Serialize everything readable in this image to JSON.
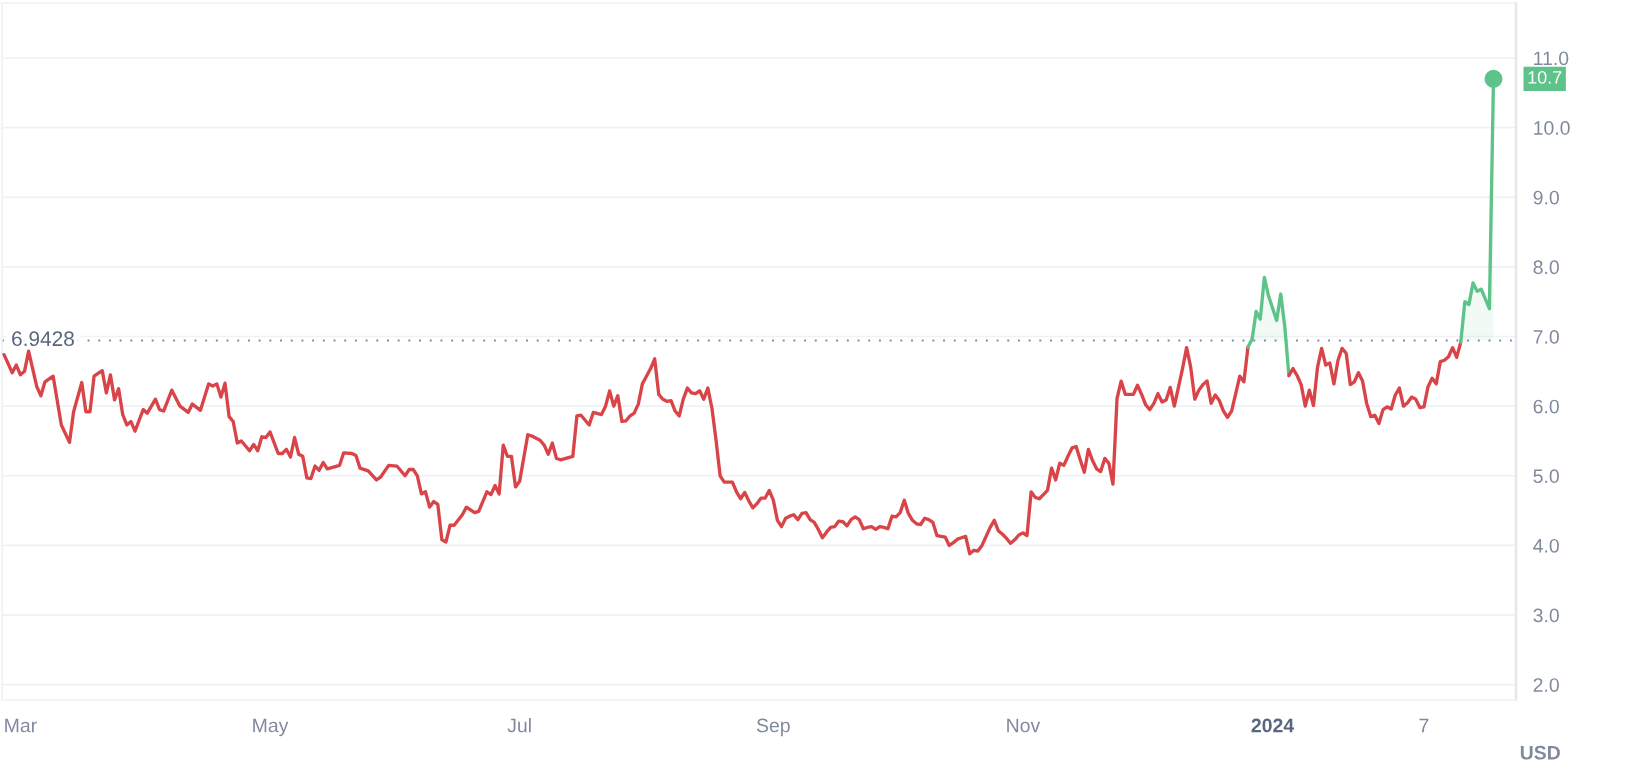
{
  "chart_data": {
    "type": "line",
    "ylabel": "USD",
    "xlim": [
      "2023-02-24T12:00",
      "2024-02-29T12:00"
    ],
    "ylim": [
      1.78,
      11.79
    ],
    "xticks": [
      {
        "value": "2023-03-01",
        "label": "Mar"
      },
      {
        "value": "2023-05-01",
        "label": "May"
      },
      {
        "value": "2023-07-01",
        "label": "Jul"
      },
      {
        "value": "2023-09-01",
        "label": "Sep"
      },
      {
        "value": "2023-11-01",
        "label": "Nov"
      },
      {
        "value": "2024-01-01",
        "label": "2024"
      },
      {
        "value": "2024-02-07",
        "label": "7"
      }
    ],
    "yticks": [
      {
        "value": 2,
        "label": "2.0"
      },
      {
        "value": 3,
        "label": "3.0"
      },
      {
        "value": 4,
        "label": "4.0"
      },
      {
        "value": 5,
        "label": "5.0"
      },
      {
        "value": 6,
        "label": "6.0"
      },
      {
        "value": 7,
        "label": "7.0"
      },
      {
        "value": 8,
        "label": "8.0"
      },
      {
        "value": 9,
        "label": "9.0"
      },
      {
        "value": 10,
        "label": "10.0"
      },
      {
        "value": 11,
        "label": "11.0"
      }
    ],
    "grid": "y",
    "ref_lines": [
      {
        "axis": "y",
        "value": 6.9428,
        "label": "6.9428",
        "line_style": "dotted",
        "color": "#808a9d"
      }
    ],
    "series": [
      {
        "color": "#d94449",
        "x": [
          "2023-02-25",
          "2023-02-27",
          "2023-02-28",
          "2023-03-01",
          "2023-03-02",
          "2023-03-03",
          "2023-03-05",
          "2023-03-06",
          "2023-03-07",
          "2023-03-09",
          "2023-03-11",
          "2023-03-13",
          "2023-03-14",
          "2023-03-16",
          "2023-03-17",
          "2023-03-18",
          "2023-03-19",
          "2023-03-21",
          "2023-03-22",
          "2023-03-23",
          "2023-03-24",
          "2023-03-25",
          "2023-03-26",
          "2023-03-27",
          "2023-03-28",
          "2023-03-29",
          "2023-03-31",
          "2023-04-01",
          "2023-04-03",
          "2023-04-04",
          "2023-04-05",
          "2023-04-07",
          "2023-04-09",
          "2023-04-11",
          "2023-04-12",
          "2023-04-14",
          "2023-04-16",
          "2023-04-17",
          "2023-04-18",
          "2023-04-19",
          "2023-04-20",
          "2023-04-21",
          "2023-04-22",
          "2023-04-23",
          "2023-04-24",
          "2023-04-26",
          "2023-04-27",
          "2023-04-28",
          "2023-04-29",
          "2023-04-30",
          "2023-05-01",
          "2023-05-03",
          "2023-05-04",
          "2023-05-05",
          "2023-05-06",
          "2023-05-07",
          "2023-05-08",
          "2023-05-09",
          "2023-05-10",
          "2023-05-11",
          "2023-05-12",
          "2023-05-13",
          "2023-05-14",
          "2023-05-15",
          "2023-05-18",
          "2023-05-19",
          "2023-05-21",
          "2023-05-22",
          "2023-05-23",
          "2023-05-25",
          "2023-05-27",
          "2023-05-28",
          "2023-05-30",
          "2023-06-01",
          "2023-06-03",
          "2023-06-04",
          "2023-06-05",
          "2023-06-06",
          "2023-06-07",
          "2023-06-08",
          "2023-06-09",
          "2023-06-10",
          "2023-06-11",
          "2023-06-12",
          "2023-06-13",
          "2023-06-14",
          "2023-06-15",
          "2023-06-17",
          "2023-06-18",
          "2023-06-20",
          "2023-06-21",
          "2023-06-23",
          "2023-06-24",
          "2023-06-25",
          "2023-06-26",
          "2023-06-27",
          "2023-06-28",
          "2023-06-29",
          "2023-06-30",
          "2023-07-01",
          "2023-07-03",
          "2023-07-04",
          "2023-07-06",
          "2023-07-07",
          "2023-07-08",
          "2023-07-09",
          "2023-07-10",
          "2023-07-11",
          "2023-07-14",
          "2023-07-15",
          "2023-07-16",
          "2023-07-18",
          "2023-07-19",
          "2023-07-21",
          "2023-07-22",
          "2023-07-23",
          "2023-07-24",
          "2023-07-25",
          "2023-07-26",
          "2023-07-27",
          "2023-07-28",
          "2023-07-29",
          "2023-07-30",
          "2023-07-31",
          "2023-08-01",
          "2023-08-02",
          "2023-08-03",
          "2023-08-04",
          "2023-08-05",
          "2023-08-06",
          "2023-08-07",
          "2023-08-08",
          "2023-08-09",
          "2023-08-10",
          "2023-08-11",
          "2023-08-12",
          "2023-08-13",
          "2023-08-14",
          "2023-08-15",
          "2023-08-16",
          "2023-08-17",
          "2023-08-18",
          "2023-08-19",
          "2023-08-20",
          "2023-08-22",
          "2023-08-23",
          "2023-08-24",
          "2023-08-25",
          "2023-08-26",
          "2023-08-27",
          "2023-08-28",
          "2023-08-29",
          "2023-08-30",
          "2023-08-31",
          "2023-09-01",
          "2023-09-02",
          "2023-09-03",
          "2023-09-04",
          "2023-09-05",
          "2023-09-06",
          "2023-09-07",
          "2023-09-08",
          "2023-09-09",
          "2023-09-10",
          "2023-09-11",
          "2023-09-12",
          "2023-09-13",
          "2023-09-14",
          "2023-09-15",
          "2023-09-16",
          "2023-09-17",
          "2023-09-18",
          "2023-09-19",
          "2023-09-20",
          "2023-09-21",
          "2023-09-22",
          "2023-09-23",
          "2023-09-24",
          "2023-09-25",
          "2023-09-26",
          "2023-09-27",
          "2023-09-28",
          "2023-09-29",
          "2023-09-30",
          "2023-10-01",
          "2023-10-02",
          "2023-10-03",
          "2023-10-04",
          "2023-10-05",
          "2023-10-06",
          "2023-10-07",
          "2023-10-08",
          "2023-10-09",
          "2023-10-10",
          "2023-10-11",
          "2023-10-12",
          "2023-10-13",
          "2023-10-14",
          "2023-10-15",
          "2023-10-16",
          "2023-10-17",
          "2023-10-18",
          "2023-10-19",
          "2023-10-20",
          "2023-10-21",
          "2023-10-22",
          "2023-10-23",
          "2023-10-24",
          "2023-10-25",
          "2023-10-26",
          "2023-10-27",
          "2023-10-28",
          "2023-10-29",
          "2023-10-30",
          "2023-10-31",
          "2023-11-01",
          "2023-11-02",
          "2023-11-03",
          "2023-11-04",
          "2023-11-05",
          "2023-11-06",
          "2023-11-07",
          "2023-11-08",
          "2023-11-09",
          "2023-11-10",
          "2023-11-11",
          "2023-11-12",
          "2023-11-13",
          "2023-11-14",
          "2023-11-15",
          "2023-11-16",
          "2023-11-17",
          "2023-11-18",
          "2023-11-19",
          "2023-11-20",
          "2023-11-21",
          "2023-11-22",
          "2023-11-23",
          "2023-11-24",
          "2023-11-25",
          "2023-11-26",
          "2023-11-28",
          "2023-11-29",
          "2023-11-30",
          "2023-12-01",
          "2023-12-02",
          "2023-12-03",
          "2023-12-04",
          "2023-12-05",
          "2023-12-06",
          "2023-12-07",
          "2023-12-08",
          "2023-12-09",
          "2023-12-10",
          "2023-12-11",
          "2023-12-12",
          "2023-12-13",
          "2023-12-14",
          "2023-12-15",
          "2023-12-16",
          "2023-12-17",
          "2023-12-18",
          "2023-12-19",
          "2023-12-20",
          "2023-12-21",
          "2023-12-22",
          "2023-12-23",
          "2023-12-24",
          "2023-12-25",
          "2023-12-26"
        ],
        "values": [
          6.74,
          6.48,
          6.59,
          6.45,
          6.5,
          6.79,
          6.28,
          6.15,
          6.35,
          6.43,
          5.73,
          5.48,
          5.92,
          6.34,
          5.92,
          5.92,
          6.43,
          6.51,
          6.19,
          6.45,
          6.09,
          6.25,
          5.88,
          5.73,
          5.78,
          5.64,
          5.95,
          5.9,
          6.1,
          5.95,
          5.93,
          6.23,
          6.0,
          5.91,
          6.03,
          5.94,
          6.32,
          6.29,
          6.32,
          6.13,
          6.33,
          5.85,
          5.78,
          5.47,
          5.5,
          5.36,
          5.45,
          5.36,
          5.56,
          5.55,
          5.63,
          5.32,
          5.32,
          5.38,
          5.27,
          5.55,
          5.31,
          5.28,
          4.97,
          4.96,
          5.14,
          5.08,
          5.19,
          5.1,
          5.15,
          5.33,
          5.32,
          5.29,
          5.11,
          5.07,
          4.94,
          4.98,
          5.15,
          5.14,
          5.0,
          5.09,
          5.09,
          5.0,
          4.74,
          4.77,
          4.55,
          4.63,
          4.59,
          4.08,
          4.05,
          4.29,
          4.29,
          4.44,
          4.55,
          4.47,
          4.49,
          4.77,
          4.73,
          4.86,
          4.74,
          5.44,
          5.28,
          5.28,
          4.84,
          4.92,
          5.59,
          5.57,
          5.51,
          5.44,
          5.31,
          5.47,
          5.25,
          5.23,
          5.28,
          5.86,
          5.87,
          5.73,
          5.91,
          5.88,
          6.0,
          6.22,
          6.0,
          6.15,
          5.78,
          5.79,
          5.86,
          5.9,
          6.03,
          6.32,
          6.43,
          6.54,
          6.68,
          6.17,
          6.1,
          6.07,
          6.08,
          5.93,
          5.86,
          6.1,
          6.26,
          6.19,
          6.18,
          6.22,
          6.1,
          6.26,
          5.97,
          5.51,
          5.0,
          4.91,
          4.91,
          4.77,
          4.67,
          4.76,
          4.64,
          4.54,
          4.6,
          4.68,
          4.68,
          4.79,
          4.65,
          4.36,
          4.27,
          4.39,
          4.42,
          4.44,
          4.37,
          4.46,
          4.47,
          4.37,
          4.33,
          4.23,
          4.11,
          4.19,
          4.26,
          4.27,
          4.35,
          4.34,
          4.28,
          4.37,
          4.41,
          4.37,
          4.24,
          4.26,
          4.27,
          4.23,
          4.27,
          4.26,
          4.24,
          4.42,
          4.41,
          4.47,
          4.65,
          4.46,
          4.36,
          4.31,
          4.3,
          4.39,
          4.37,
          4.33,
          4.14,
          4.13,
          4.12,
          4.0,
          4.04,
          4.09,
          4.11,
          4.13,
          3.88,
          3.93,
          3.92,
          4.0,
          4.13,
          4.26,
          4.36,
          4.21,
          4.16,
          4.1,
          4.03,
          4.08,
          4.15,
          4.18,
          4.14,
          4.77,
          4.69,
          4.67,
          4.73,
          4.79,
          5.11,
          4.94,
          5.18,
          5.15,
          5.28,
          5.4,
          5.42,
          5.23,
          5.05,
          5.38,
          5.22,
          5.1,
          5.06,
          5.25,
          5.18,
          4.88,
          6.11,
          6.36,
          6.17,
          6.17,
          6.3,
          6.17,
          6.02,
          5.95,
          6.04,
          6.18,
          6.06,
          6.09,
          6.27,
          6.0,
          6.27,
          6.54,
          6.84,
          6.56,
          6.1,
          6.23,
          6.31,
          6.36,
          6.04,
          6.16,
          6.08,
          5.93,
          5.84,
          5.93,
          6.18,
          6.43,
          6.35,
          6.85
        ]
      },
      {
        "type": "area",
        "color": "#5dc389",
        "x": [
          "2023-12-26",
          "2023-12-27",
          "2023-12-28",
          "2023-12-29",
          "2023-12-30",
          "2023-12-31",
          "2024-01-01",
          "2024-01-02",
          "2024-01-03",
          "2024-01-04",
          "2024-01-05"
        ],
        "values": [
          6.85,
          6.96,
          7.36,
          7.25,
          7.85,
          7.59,
          7.41,
          7.23,
          7.61,
          7.14,
          6.44
        ]
      },
      {
        "color": "#d94449",
        "x": [
          "2024-01-05",
          "2024-01-06",
          "2024-01-07",
          "2024-01-08",
          "2024-01-09",
          "2024-01-10",
          "2024-01-11",
          "2024-01-12",
          "2024-01-13",
          "2024-01-14",
          "2024-01-15",
          "2024-01-16",
          "2024-01-17",
          "2024-01-18",
          "2024-01-19",
          "2024-01-20",
          "2024-01-21",
          "2024-01-22",
          "2024-01-23",
          "2024-01-24",
          "2024-01-25",
          "2024-01-26",
          "2024-01-27",
          "2024-01-28",
          "2024-01-29",
          "2024-01-30",
          "2024-01-31",
          "2024-02-01",
          "2024-02-02",
          "2024-02-03",
          "2024-02-04",
          "2024-02-05",
          "2024-02-06",
          "2024-02-07",
          "2024-02-08",
          "2024-02-09",
          "2024-02-10",
          "2024-02-11",
          "2024-02-12",
          "2024-02-13",
          "2024-02-14",
          "2024-02-15",
          "2024-02-16"
        ],
        "values": [
          6.44,
          6.54,
          6.44,
          6.31,
          6.0,
          6.23,
          6.01,
          6.56,
          6.83,
          6.59,
          6.62,
          6.32,
          6.66,
          6.83,
          6.76,
          6.31,
          6.35,
          6.48,
          6.36,
          6.04,
          5.85,
          5.87,
          5.75,
          5.95,
          5.99,
          5.96,
          6.16,
          6.26,
          6.0,
          6.05,
          6.13,
          6.1,
          5.98,
          5.99,
          6.28,
          6.4,
          6.32,
          6.64,
          6.66,
          6.71,
          6.84,
          6.7,
          6.92
        ]
      },
      {
        "type": "area",
        "color": "#5dc389",
        "x": [
          "2024-02-16",
          "2024-02-17",
          "2024-02-18",
          "2024-02-19",
          "2024-02-20",
          "2024-02-21",
          "2024-02-22",
          "2024-02-23",
          "2024-02-24"
        ],
        "values": [
          6.92,
          7.5,
          7.46,
          7.77,
          7.65,
          7.68,
          7.54,
          7.4,
          10.7
        ],
        "value_labels": [
          null,
          null,
          null,
          null,
          null,
          null,
          null,
          null,
          "10.7"
        ]
      }
    ]
  }
}
